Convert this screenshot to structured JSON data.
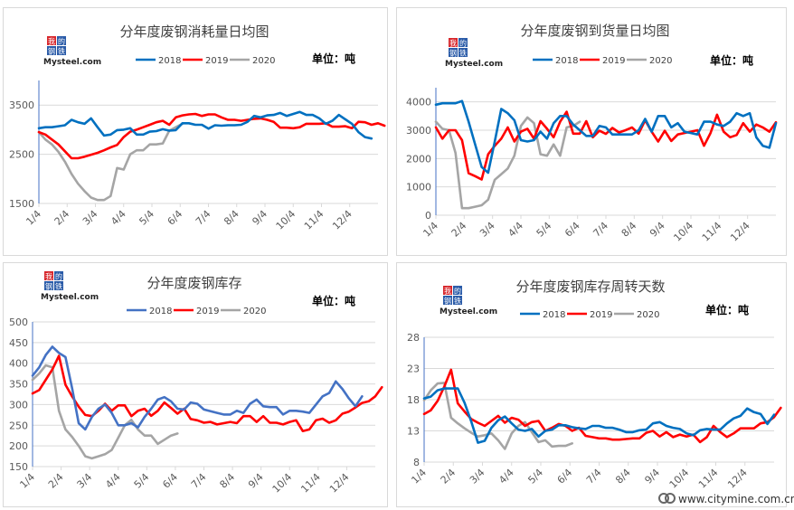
{
  "watermark": {
    "text": "www.citymine.com.cn",
    "icon": "citymine-logo-icon"
  },
  "logo": {
    "cn_text": "我的钢铁",
    "en_text": "Mysteel.com"
  },
  "colors": {
    "2018": "#0070C0",
    "2018_alt": "#4472C4",
    "2019": "#FF0000",
    "2020": "#A5A5A5"
  },
  "chart_data": [
    {
      "type": "line",
      "title": "分年度废钢消耗量日均图",
      "unit": "单位：吨",
      "x_tick_labels": [
        "1/4",
        "2/4",
        "3/4",
        "4/4",
        "5/4",
        "6/4",
        "7/4",
        "8/4",
        "9/4",
        "10/4",
        "11/4",
        "12/4"
      ],
      "ylim": [
        1500,
        4000
      ],
      "y_ticks": [
        1500,
        2500,
        3500
      ],
      "grid": true,
      "legend": "top",
      "series": [
        {
          "name": "2018",
          "color": "#0070C0",
          "values": [
            3030,
            3050,
            3050,
            3070,
            3090,
            3200,
            3150,
            3120,
            3230,
            3050,
            2880,
            2900,
            2990,
            3000,
            3030,
            2900,
            2900,
            2960,
            2970,
            3010,
            2980,
            2990,
            3130,
            3130,
            3100,
            3100,
            3020,
            3090,
            3080,
            3090,
            3090,
            3100,
            3160,
            3280,
            3250,
            3290,
            3300,
            3340,
            3280,
            3320,
            3360,
            3300,
            3300,
            3230,
            3120,
            3180,
            3300,
            3210,
            3120,
            2950,
            2850,
            2820
          ]
        },
        {
          "name": "2019",
          "color": "#FF0000",
          "values": [
            2950,
            2900,
            2800,
            2700,
            2560,
            2420,
            2420,
            2450,
            2490,
            2530,
            2580,
            2640,
            2690,
            2850,
            2960,
            3000,
            3050,
            3100,
            3150,
            3180,
            3100,
            3250,
            3290,
            3310,
            3320,
            3280,
            3310,
            3310,
            3250,
            3200,
            3200,
            3180,
            3200,
            3220,
            3230,
            3200,
            3160,
            3040,
            3040,
            3030,
            3050,
            3120,
            3120,
            3120,
            3130,
            3060,
            3060,
            3070,
            3030,
            3160,
            3150,
            3100,
            3130,
            3080
          ]
        },
        {
          "name": "2020",
          "color": "#A5A5A5",
          "values": [
            2950,
            2800,
            2700,
            2550,
            2350,
            2100,
            1900,
            1750,
            1620,
            1570,
            1570,
            1650,
            2220,
            2190,
            2500,
            2580,
            2580,
            2700,
            2700,
            2720,
            2980,
            3050,
            3120
          ]
        }
      ]
    },
    {
      "type": "line",
      "title": "分年度废钢到货量日均图",
      "unit": "单位：吨",
      "x_tick_labels": [
        "1/4",
        "2/4",
        "3/4",
        "4/4",
        "5/4",
        "6/4",
        "7/4",
        "8/4",
        "9/4",
        "10/4",
        "11/4",
        "12/4"
      ],
      "ylim": [
        0,
        4500
      ],
      "y_ticks": [
        0,
        1000,
        2000,
        3000,
        4000
      ],
      "grid": true,
      "legend": "top",
      "series": [
        {
          "name": "2018",
          "color": "#0070C0",
          "values": [
            3900,
            3950,
            3950,
            3950,
            4030,
            3300,
            2500,
            1700,
            1500,
            2600,
            3750,
            3600,
            3350,
            2650,
            2600,
            2650,
            2950,
            2700,
            3250,
            3500,
            3500,
            3200,
            3000,
            2800,
            2800,
            3150,
            3100,
            2850,
            2850,
            2850,
            2850,
            3000,
            3400,
            2950,
            3500,
            3500,
            3100,
            3250,
            2950,
            2900,
            2850,
            3300,
            3300,
            3200,
            3150,
            3300,
            3600,
            3500,
            3600,
            2750,
            2450,
            2380,
            3250
          ]
        },
        {
          "name": "2019",
          "color": "#FF0000",
          "values": [
            3100,
            2700,
            3000,
            3000,
            2650,
            1480,
            1380,
            1260,
            2150,
            2450,
            2700,
            3100,
            2600,
            2950,
            3050,
            2700,
            3320,
            3050,
            2750,
            3300,
            3650,
            2880,
            2880,
            3320,
            2750,
            2980,
            2870,
            3080,
            2920,
            3000,
            3100,
            2880,
            3350,
            2950,
            2600,
            2980,
            2620,
            2850,
            2900,
            2950,
            3000,
            2450,
            2900,
            3550,
            2950,
            2750,
            2830,
            3250,
            2950,
            3200,
            3100,
            2950,
            3280
          ]
        },
        {
          "name": "2020",
          "color": "#A5A5A5",
          "values": [
            3300,
            3050,
            3000,
            2200,
            250,
            250,
            300,
            350,
            550,
            1250,
            1450,
            1650,
            2100,
            3150,
            3450,
            3250,
            2150,
            2100,
            2500,
            2100,
            3100,
            3150,
            3300
          ]
        }
      ]
    },
    {
      "type": "line",
      "title": "分年度废钢库存",
      "unit": "单位：吨",
      "x_tick_labels": [
        "1/4",
        "2/4",
        "3/4",
        "4/4",
        "5/4",
        "6/4",
        "7/4",
        "8/4",
        "9/4",
        "10/4",
        "11/4",
        "12/4"
      ],
      "ylim": [
        150,
        500
      ],
      "y_ticks": [
        150,
        200,
        250,
        300,
        350,
        400,
        450,
        500
      ],
      "grid": true,
      "legend": "top",
      "series": [
        {
          "name": "2018",
          "color": "#4472C4",
          "values": [
            370,
            390,
            420,
            440,
            425,
            415,
            340,
            255,
            240,
            270,
            290,
            300,
            280,
            250,
            250,
            255,
            245,
            270,
            290,
            312,
            318,
            308,
            290,
            288,
            305,
            302,
            288,
            284,
            280,
            276,
            276,
            285,
            280,
            302,
            312,
            296,
            294,
            294,
            276,
            285,
            285,
            283,
            280,
            300,
            320,
            328,
            356,
            338,
            315,
            296,
            320
          ]
        },
        {
          "name": "2019",
          "color": "#FF0000",
          "values": [
            327,
            335,
            360,
            385,
            418,
            348,
            320,
            295,
            275,
            272,
            285,
            302,
            285,
            298,
            298,
            272,
            285,
            290,
            273,
            285,
            305,
            292,
            278,
            290,
            265,
            262,
            256,
            258,
            252,
            255,
            258,
            255,
            272,
            272,
            258,
            272,
            256,
            256,
            252,
            258,
            262,
            236,
            240,
            262,
            266,
            256,
            262,
            278,
            283,
            293,
            304,
            308,
            320,
            342
          ]
        },
        {
          "name": "2020",
          "color": "#A5A5A5",
          "values": [
            360,
            375,
            395,
            390,
            285,
            240,
            222,
            200,
            175,
            170,
            175,
            180,
            190,
            220,
            250,
            263,
            240,
            225,
            225,
            205,
            215,
            225,
            230
          ]
        }
      ]
    },
    {
      "type": "line",
      "title": "分年度废钢库存周转天数",
      "unit": "单位：吨",
      "x_tick_labels": [
        "1/4",
        "2/4",
        "3/4",
        "4/4",
        "5/4",
        "6/4",
        "7/4",
        "8/4",
        "9/4",
        "10/4",
        "11/4",
        "12/4"
      ],
      "ylim": [
        8,
        28
      ],
      "y_ticks": [
        8,
        13,
        18,
        23,
        28
      ],
      "grid": true,
      "legend": "top",
      "series": [
        {
          "name": "2018",
          "color": "#0070C0",
          "values": [
            18.2,
            18.5,
            19.5,
            19.8,
            19.8,
            19.8,
            17.5,
            14.5,
            11.1,
            11.4,
            13.5,
            14.7,
            15.3,
            14.2,
            13.2,
            13.0,
            13.3,
            12.1,
            13.0,
            13.2,
            13.9,
            13.9,
            13.6,
            13.4,
            13.3,
            13.8,
            13.8,
            13.5,
            13.5,
            13.2,
            12.8,
            12.8,
            13.1,
            13.2,
            14.2,
            14.4,
            13.8,
            13.5,
            13.3,
            12.6,
            12.3,
            13.1,
            13.3,
            13.2,
            13.2,
            14.2,
            15.0,
            15.4,
            16.6,
            16.0,
            15.7,
            14.1,
            15.6
          ]
        },
        {
          "name": "2019",
          "color": "#FF0000",
          "values": [
            15.7,
            16.3,
            17.8,
            20.1,
            22.8,
            17.4,
            16.1,
            14.9,
            14.3,
            13.8,
            14.6,
            15.4,
            14.3,
            15.1,
            14.8,
            13.8,
            14.4,
            14.6,
            13.0,
            13.5,
            14.1,
            13.8,
            13.0,
            13.5,
            12.2,
            12.0,
            11.8,
            11.8,
            11.6,
            11.6,
            11.7,
            11.8,
            11.8,
            12.7,
            13.0,
            12.1,
            12.8,
            12.0,
            12.4,
            12.1,
            12.4,
            11.2,
            12.0,
            13.8,
            12.8,
            12.0,
            12.6,
            13.4,
            13.4,
            13.4,
            14.2,
            14.4,
            15.2,
            16.7
          ]
        },
        {
          "name": "2020",
          "color": "#A5A5A5",
          "values": [
            17.9,
            19.5,
            20.6,
            20.7,
            15.1,
            14.2,
            13.4,
            12.7,
            12.1,
            12.3,
            12.6,
            11.5,
            10.1,
            12.6,
            13.8,
            14.4,
            12.8,
            11.2,
            11.5,
            10.5,
            10.6,
            10.6,
            11.0
          ]
        }
      ]
    }
  ]
}
